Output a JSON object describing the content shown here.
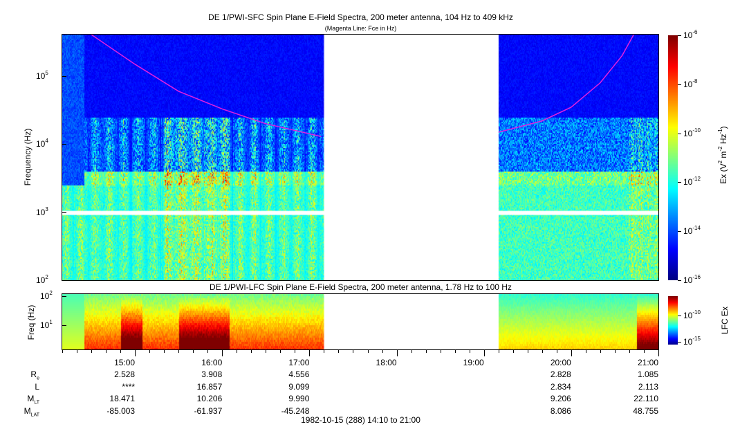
{
  "chart_data": [
    {
      "type": "heatmap",
      "title": "DE 1/PWI-SFC  Spin Plane E-Field Spectra, 200 meter antenna, 104 Hz to 409 kHz",
      "subtitle": "(Magenta Line: Fce in Hz)",
      "ylabel": "Frequency (Hz)",
      "yscale": "log",
      "ylim": [
        100,
        409000
      ],
      "yticks": [
        {
          "b": "10",
          "e": "2"
        },
        {
          "b": "10",
          "e": "3"
        },
        {
          "b": "10",
          "e": "4"
        },
        {
          "b": "10",
          "e": "5"
        }
      ],
      "data_gap": [
        "17:10",
        "19:10"
      ],
      "colorbar": {
        "label": "Ex (V",
        "label_sup1": "2",
        "label_mid": " m",
        "label_sup2": "-2",
        "label_hz": " Hz",
        "label_sup3": "-1",
        "label_end": ")",
        "range": [
          1e-16,
          1e-06
        ],
        "ticks": [
          {
            "b": "10",
            "e": "-6"
          },
          {
            "b": "10",
            "e": "-8"
          },
          {
            "b": "10",
            "e": "-10"
          },
          {
            "b": "10",
            "e": "-12"
          },
          {
            "b": "10",
            "e": "-14"
          },
          {
            "b": "10",
            "e": "-16"
          }
        ]
      },
      "fce_line": {
        "color": "#e020e0",
        "segments": [
          [
            [
              "14:30",
              409000
            ],
            [
              "15:00",
              150000
            ],
            [
              "15:30",
              60000
            ],
            [
              "16:00",
              33000
            ],
            [
              "16:30",
              20000
            ],
            [
              "17:08",
              13000
            ]
          ],
          [
            [
              "19:10",
              15000
            ],
            [
              "19:40",
              22000
            ],
            [
              "20:00",
              35000
            ],
            [
              "20:20",
              80000
            ],
            [
              "20:35",
              200000
            ],
            [
              "20:43",
              409000
            ]
          ]
        ]
      }
    },
    {
      "type": "heatmap",
      "title": "DE 1/PWI-LFC  Spin Plane E-Field Spectra, 200 meter antenna, 1.78 Hz to 100 Hz",
      "ylabel": "Freq (Hz)",
      "yscale": "log",
      "ylim": [
        1.78,
        100
      ],
      "yticks": [
        {
          "b": "10",
          "e": "2"
        },
        {
          "b": "10",
          "e": "1"
        }
      ],
      "data_gap": [
        "17:10",
        "19:10"
      ],
      "colorbar": {
        "label": "LFC Ex",
        "ticks": [
          {
            "b": "10",
            "e": "-10"
          },
          {
            "b": "10",
            "e": "-15"
          }
        ]
      }
    }
  ],
  "xaxis": {
    "range": [
      "14:10",
      "21:00"
    ],
    "ticks": [
      "15:00",
      "16:00",
      "17:00",
      "18:00",
      "19:00",
      "20:00",
      "21:00"
    ],
    "footer": "1982-10-15 (288) 14:10 to 21:00"
  },
  "ephemeris": {
    "rows": [
      {
        "label": "R",
        "sub": "e",
        "values": [
          "2.528",
          "3.908",
          "4.556",
          "",
          "",
          "2.828",
          "1.085"
        ]
      },
      {
        "label": "L",
        "sub": "",
        "values": [
          "****",
          "16.857",
          "9.099",
          "",
          "",
          "2.834",
          "2.113"
        ]
      },
      {
        "label": "M",
        "sub": "LT",
        "values": [
          "18.471",
          "10.206",
          "9.990",
          "",
          "",
          "9.206",
          "22.110"
        ]
      },
      {
        "label": "M",
        "sub": "LAT",
        "values": [
          "-85.003",
          "-61.937",
          "-45.248",
          "",
          "",
          "8.086",
          "48.755"
        ]
      }
    ]
  }
}
